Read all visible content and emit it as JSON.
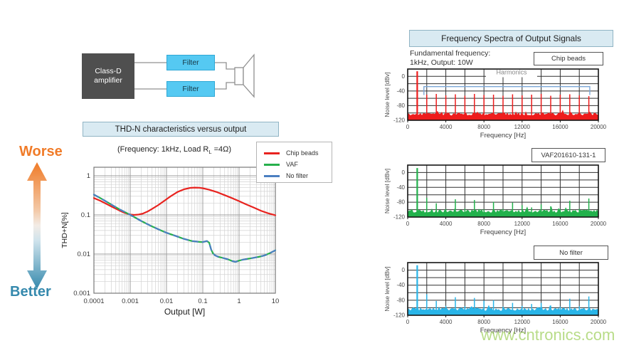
{
  "watermark": {
    "text": "www.cntronics.com",
    "color": "#8dc63f"
  },
  "colors": {
    "section_title_bg": "#d9eaf2",
    "section_title_border": "#90b4c4",
    "amplifier_bg": "#4f4f4f",
    "filter_bg": "#55c9f2",
    "wire_gray": "#909090",
    "worse_orange": "#f07b28",
    "better_teal": "#3589ad",
    "chip_beads_red": "#e8231f",
    "vaf_green": "#27b04c",
    "no_filter_blue": "#4b7fc1",
    "spectrum_red": "#ee1c1c",
    "spectrum_green": "#22b14c",
    "spectrum_cyan": "#29b5e8",
    "harmonics_bracket_blue": "#7ba7d7"
  },
  "block_diagram": {
    "amplifier_label": "Class-D\namplifier",
    "filters": [
      "Filter",
      "Filter"
    ]
  },
  "thd_section": {
    "title": "THD-N characteristics versus output",
    "subtitle": {
      "p1": "(Frequency: 1kHz, Load R",
      "sub": "L",
      "p2": " =4Ω)"
    },
    "worse_label": "Worse",
    "better_label": "Better",
    "legend": [
      {
        "label": "Chip beads",
        "color": "#e8231f"
      },
      {
        "label": "VAF",
        "color": "#27b04c"
      },
      {
        "label": "No filter",
        "color": "#4b7fc1"
      }
    ]
  },
  "spectra_section": {
    "title": "Frequency Spectra of Output Signals",
    "condition": [
      "Fundamental frequency:",
      "1kHz, Output: 10W"
    ]
  },
  "chart_data": [
    {
      "id": "thd",
      "type": "line",
      "title": "THD-N characteristics versus output",
      "subtitle": "(Frequency: 1kHz, Load RL =4Ω)",
      "xlabel": "Output [W]",
      "ylabel": "THD+N[%]",
      "xscale": "log",
      "yscale": "log",
      "xlim": [
        0.0001,
        10
      ],
      "ylim": [
        0.001,
        1.65
      ],
      "xticks": [
        0.0001,
        0.001,
        0.01,
        0.1,
        1,
        10
      ],
      "xtick_labels": [
        "0.0001",
        "0.001",
        "0.01",
        "0.1",
        "1",
        "10"
      ],
      "yticks": [
        0.001,
        0.01,
        0.1,
        1
      ],
      "ytick_labels": [
        "0.001",
        "0.01",
        "0.1",
        "1"
      ],
      "grid": "log-major-minor",
      "legend_position": "top-right",
      "series": [
        {
          "name": "Chip beads",
          "color": "#e8231f",
          "dash": false,
          "x": [
            0.0001,
            0.00015,
            0.0002,
            0.0003,
            0.0005,
            0.0007,
            0.001,
            0.0013,
            0.0017,
            0.0022,
            0.003,
            0.004,
            0.006,
            0.009,
            0.013,
            0.02,
            0.03,
            0.045,
            0.06,
            0.08,
            0.1,
            0.15,
            0.25,
            0.4,
            0.7,
            1,
            1.5,
            2.5,
            4,
            6,
            10
          ],
          "y": [
            0.27,
            0.23,
            0.2,
            0.165,
            0.13,
            0.113,
            0.102,
            0.1,
            0.102,
            0.108,
            0.122,
            0.142,
            0.18,
            0.235,
            0.3,
            0.385,
            0.45,
            0.49,
            0.5,
            0.495,
            0.48,
            0.44,
            0.38,
            0.32,
            0.26,
            0.225,
            0.19,
            0.155,
            0.128,
            0.112,
            0.098
          ]
        },
        {
          "name": "VAF",
          "color": "#27b04c",
          "dash": false,
          "x": [
            0.0001,
            0.00015,
            0.0002,
            0.0003,
            0.0005,
            0.0008,
            0.0012,
            0.002,
            0.0035,
            0.006,
            0.01,
            0.018,
            0.03,
            0.05,
            0.08,
            0.1,
            0.115,
            0.13,
            0.15,
            0.17,
            0.19,
            0.22,
            0.27,
            0.35,
            0.5,
            0.65,
            0.8,
            1,
            1.3,
            1.8,
            2.5,
            3.5,
            5,
            7,
            10
          ],
          "y": [
            0.33,
            0.27,
            0.23,
            0.185,
            0.14,
            0.112,
            0.092,
            0.07,
            0.054,
            0.043,
            0.035,
            0.029,
            0.0245,
            0.0215,
            0.0205,
            0.0202,
            0.021,
            0.0215,
            0.0195,
            0.013,
            0.0105,
            0.0092,
            0.0085,
            0.008,
            0.0073,
            0.0066,
            0.0063,
            0.0068,
            0.0072,
            0.0076,
            0.008,
            0.0085,
            0.0092,
            0.0105,
            0.0125
          ]
        },
        {
          "name": "No filter",
          "color": "#4b7fc1",
          "dash": true,
          "x": [
            0.0001,
            0.00015,
            0.0002,
            0.0003,
            0.0005,
            0.0008,
            0.0012,
            0.002,
            0.0035,
            0.006,
            0.01,
            0.018,
            0.03,
            0.05,
            0.08,
            0.1,
            0.115,
            0.13,
            0.15,
            0.17,
            0.19,
            0.22,
            0.27,
            0.35,
            0.5,
            0.65,
            0.8,
            1,
            1.3,
            1.8,
            2.5,
            3.5,
            5,
            7,
            10
          ],
          "y": [
            0.33,
            0.27,
            0.23,
            0.185,
            0.14,
            0.112,
            0.092,
            0.07,
            0.054,
            0.043,
            0.035,
            0.029,
            0.0245,
            0.0215,
            0.0205,
            0.0202,
            0.021,
            0.0215,
            0.0195,
            0.013,
            0.0105,
            0.0092,
            0.0085,
            0.008,
            0.0073,
            0.0066,
            0.0063,
            0.0068,
            0.0072,
            0.0076,
            0.008,
            0.0085,
            0.0092,
            0.0105,
            0.0125
          ]
        }
      ]
    },
    {
      "id": "spectrum-chip-beads",
      "type": "bar",
      "label": "Chip beads",
      "color": "#ee1c1c",
      "xlabel": "Frequency [Hz]",
      "ylabel": "Noise level [dBv]",
      "xlim": [
        0,
        20000
      ],
      "ylim": [
        -120,
        20
      ],
      "xticks": [
        0,
        4000,
        8000,
        12000,
        16000,
        20000
      ],
      "yticks": [
        0,
        -40,
        -80,
        -120
      ],
      "fundamental_hz": 1000,
      "fundamental_dbv": 14,
      "harmonics_hz": [
        2000,
        3000,
        4000,
        5000,
        6000,
        7000,
        8000,
        9000,
        10000,
        11000,
        12000,
        13000,
        14000,
        15000,
        16000,
        17000,
        18000,
        19000
      ],
      "harmonics_dbv": [
        -50,
        -48,
        -52,
        -49,
        -53,
        -48,
        -51,
        -50,
        -53,
        -49,
        -52,
        -50,
        -48,
        -53,
        -50,
        -49,
        -52,
        -54
      ],
      "noise_floor_dbv": -103,
      "annotation": {
        "text": "Harmonics",
        "text_color": "#8a8a8a",
        "bracket_color": "#7ba7d7",
        "from_hz": 1700,
        "to_hz": 19100,
        "level_dbv": -28,
        "end_drop_dbv": -51
      }
    },
    {
      "id": "spectrum-vaf",
      "type": "bar",
      "label": "VAF201610-131-1",
      "color": "#22b14c",
      "xlabel": "Frequency [Hz]",
      "ylabel": "Noise level [dBv]",
      "xlim": [
        0,
        20000
      ],
      "ylim": [
        -120,
        20
      ],
      "xticks": [
        0,
        4000,
        8000,
        12000,
        16000,
        20000
      ],
      "yticks": [
        0,
        -40,
        -80,
        -120
      ],
      "fundamental_hz": 1000,
      "fundamental_dbv": 12,
      "harmonics_hz": [
        2000,
        3000,
        4000,
        5000,
        6000,
        7000,
        8000,
        9000,
        10000,
        11000,
        12000,
        13000,
        14000,
        15000,
        16000,
        17000,
        18000,
        19000
      ],
      "harmonics_dbv": [
        -68,
        -83,
        -98,
        -72,
        -97,
        -74,
        -99,
        -79,
        -98,
        -81,
        -88,
        -94,
        -86,
        -91,
        -99,
        -76,
        -98,
        -70
      ],
      "noise_floor_dbv": -104,
      "annotation": null
    },
    {
      "id": "spectrum-no-filter",
      "type": "bar",
      "label": "No filter",
      "color": "#29b5e8",
      "xlabel": "Frequency [Hz]",
      "ylabel": "Noise level [dBv]",
      "xlim": [
        0,
        20000
      ],
      "ylim": [
        -120,
        20
      ],
      "xticks": [
        0,
        4000,
        8000,
        12000,
        16000,
        20000
      ],
      "yticks": [
        0,
        -40,
        -80,
        -120
      ],
      "fundamental_hz": 1000,
      "fundamental_dbv": 13,
      "harmonics_hz": [
        2000,
        3000,
        4000,
        5000,
        6000,
        7000,
        8000,
        9000,
        10000,
        11000,
        12000,
        13000,
        14000,
        15000,
        16000,
        17000,
        18000,
        19000
      ],
      "harmonics_dbv": [
        -64,
        -82,
        -95,
        -72,
        -96,
        -74,
        -81,
        -80,
        -97,
        -87,
        -95,
        -90,
        -87,
        -94,
        -97,
        -76,
        -96,
        -70
      ],
      "noise_floor_dbv": -104,
      "annotation": null
    }
  ]
}
